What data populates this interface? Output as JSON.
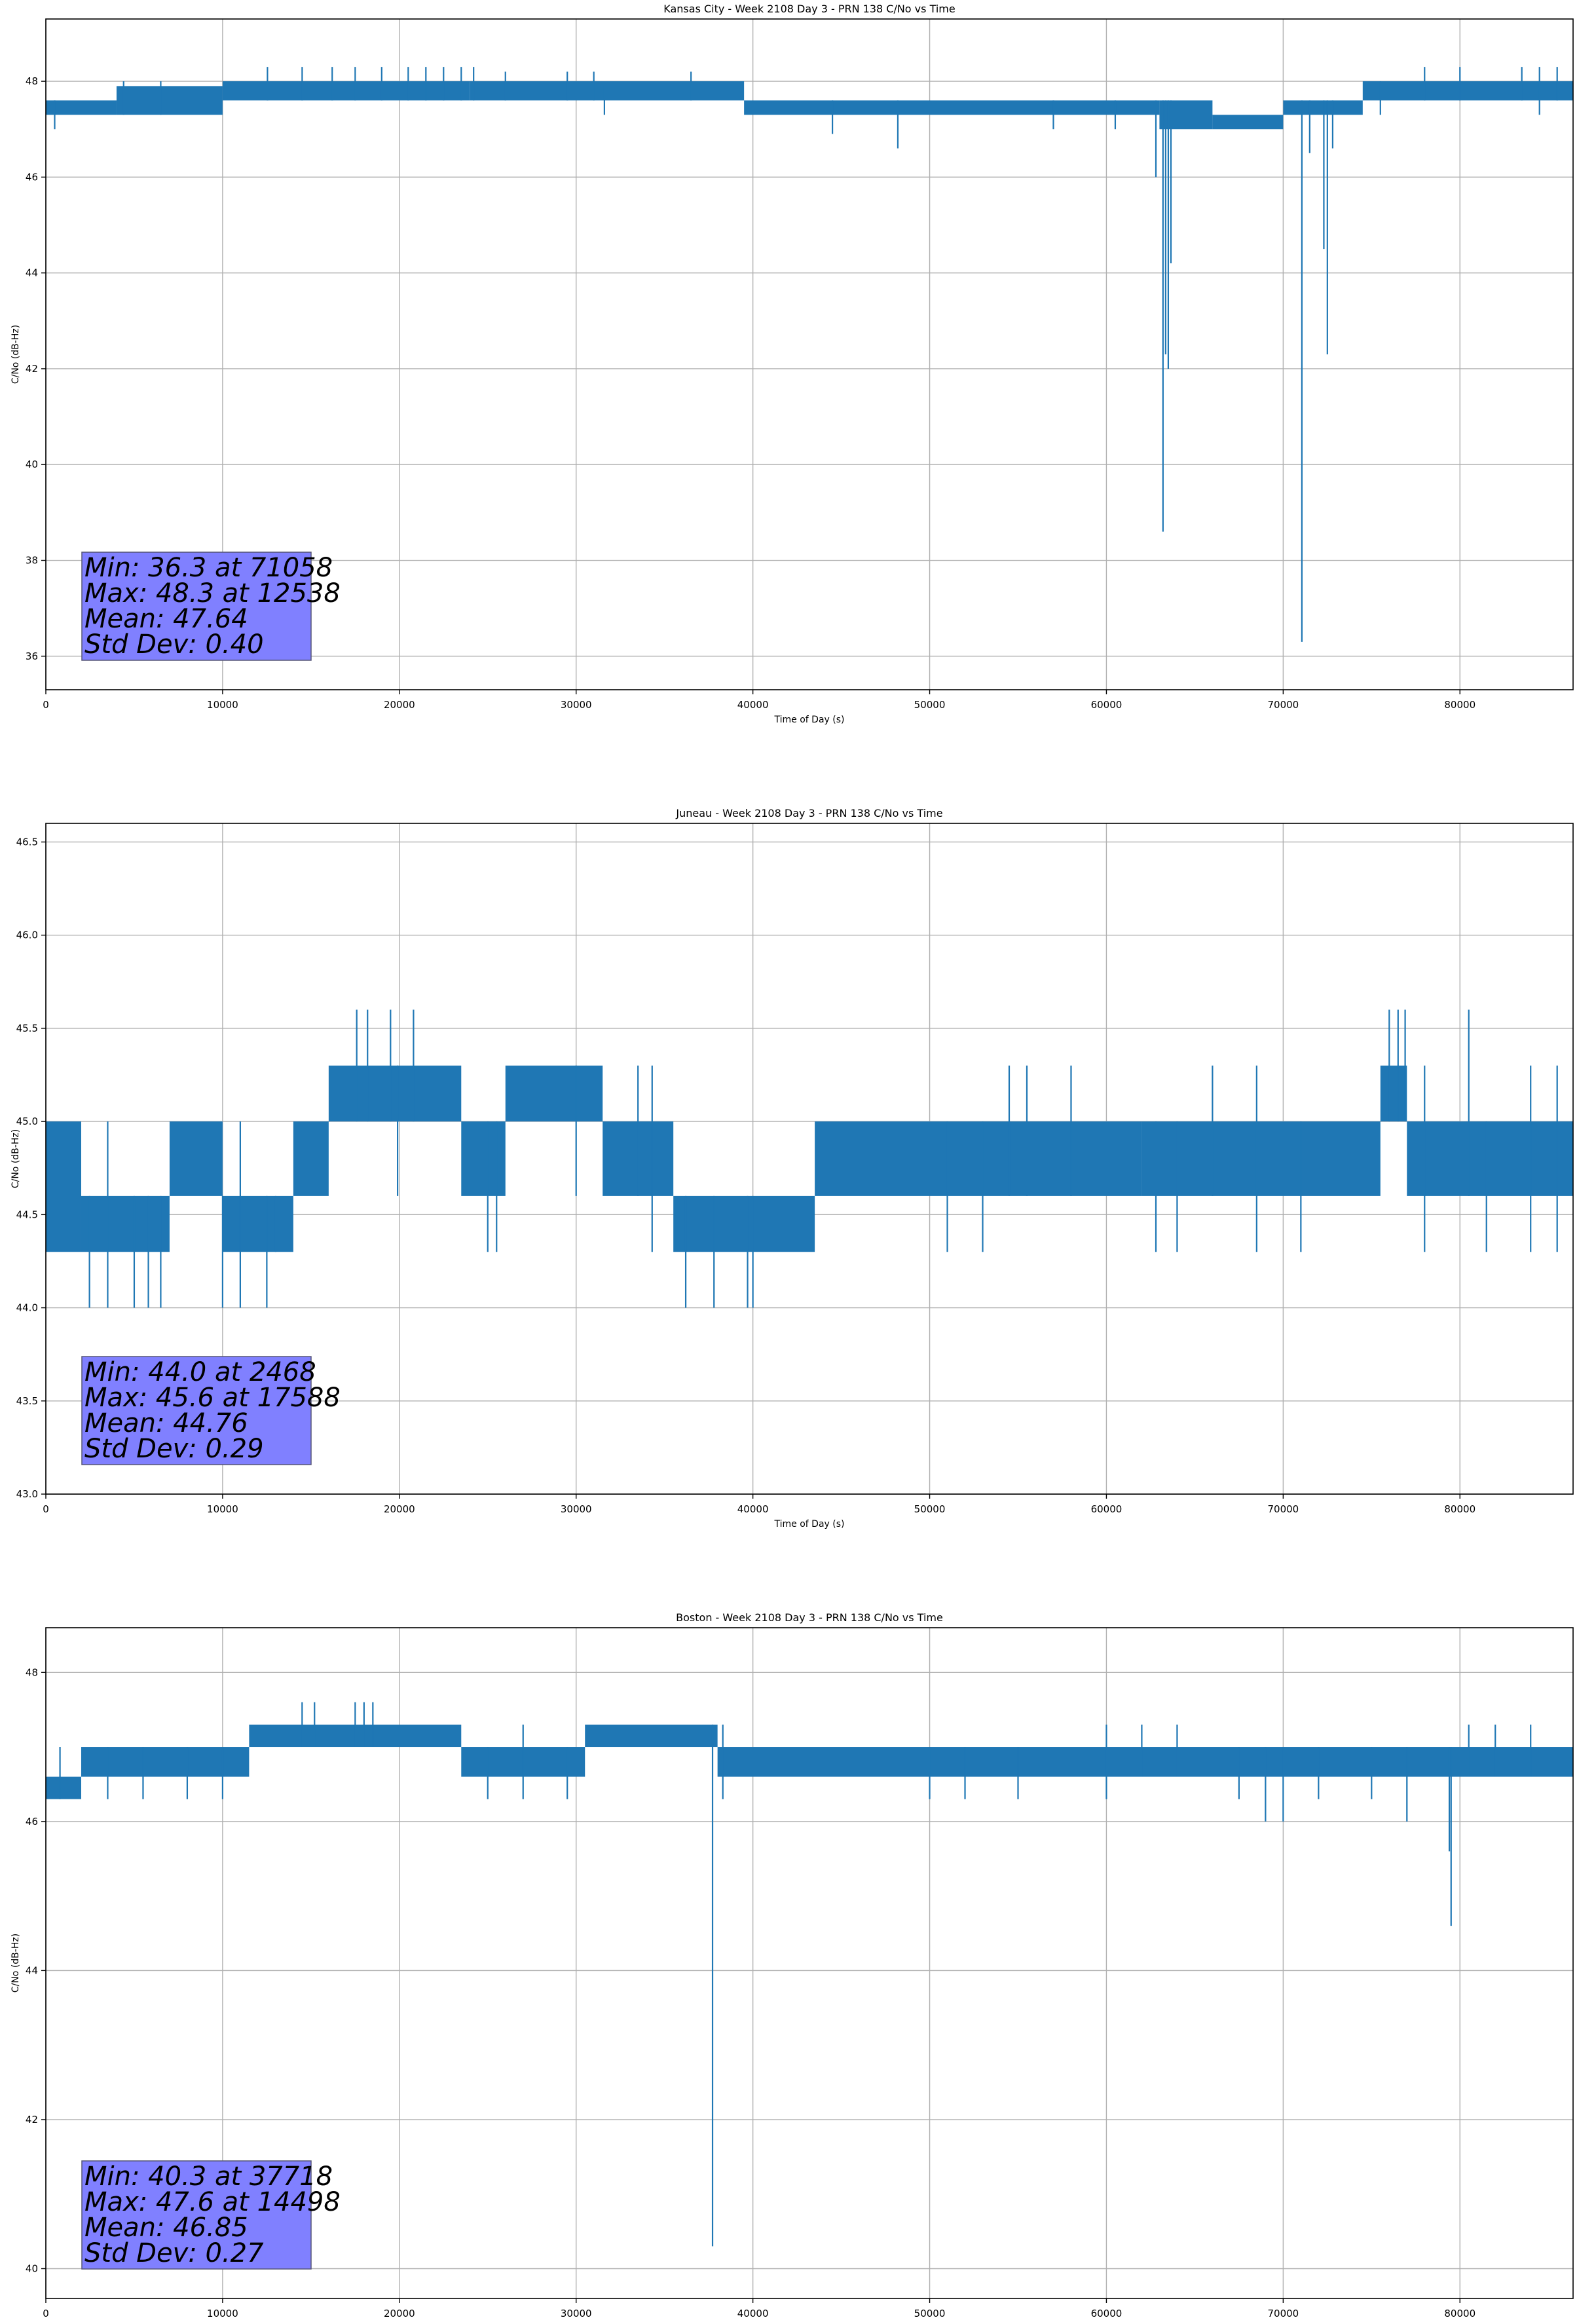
{
  "colors": {
    "series": "#1f77b4",
    "grid": "#b0b0b0",
    "stats_box_fill": "#8080ff",
    "stats_box_edge": "#555577"
  },
  "chart_data": [
    {
      "type": "line",
      "title": "Kansas City - Week 2108 Day 3 - PRN 138 C/No vs Time",
      "xlabel": "Time of Day (s)",
      "ylabel": "C/No (dB-Hz)",
      "xlim": [
        0,
        86400
      ],
      "ylim": [
        35.3,
        49.3
      ],
      "xticks": [
        0,
        10000,
        20000,
        30000,
        40000,
        50000,
        60000,
        70000,
        80000
      ],
      "xtick_labels": [
        "0",
        "10000",
        "20000",
        "30000",
        "40000",
        "50000",
        "60000",
        "70000",
        "80000"
      ],
      "yticks": [
        36,
        38,
        40,
        42,
        44,
        46,
        48
      ],
      "ytick_labels": [
        "36",
        "38",
        "40",
        "42",
        "44",
        "46",
        "48"
      ],
      "grid": true,
      "bands": [
        {
          "x0": 0,
          "x1": 4000,
          "lo": 47.3,
          "hi": 47.6
        },
        {
          "x0": 4000,
          "x1": 10000,
          "lo": 47.3,
          "hi": 47.9
        },
        {
          "x0": 10000,
          "x1": 24000,
          "lo": 47.6,
          "hi": 48.0
        },
        {
          "x0": 24000,
          "x1": 39500,
          "lo": 47.6,
          "hi": 48.0
        },
        {
          "x0": 39500,
          "x1": 63000,
          "lo": 47.3,
          "hi": 47.6
        },
        {
          "x0": 63000,
          "x1": 66000,
          "lo": 47.0,
          "hi": 47.6
        },
        {
          "x0": 66000,
          "x1": 70000,
          "lo": 47.0,
          "hi": 47.3
        },
        {
          "x0": 70000,
          "x1": 74500,
          "lo": 47.3,
          "hi": 47.6
        },
        {
          "x0": 74500,
          "x1": 86400,
          "lo": 47.6,
          "hi": 48.0
        }
      ],
      "spikes": [
        {
          "x": 500,
          "lo": 47.0,
          "hi": 47.6
        },
        {
          "x": 4400,
          "lo": 47.3,
          "hi": 48.0
        },
        {
          "x": 6500,
          "lo": 47.3,
          "hi": 48.0
        },
        {
          "x": 12538,
          "lo": 47.6,
          "hi": 48.3
        },
        {
          "x": 14500,
          "lo": 47.6,
          "hi": 48.3
        },
        {
          "x": 16200,
          "lo": 47.6,
          "hi": 48.3
        },
        {
          "x": 17500,
          "lo": 47.6,
          "hi": 48.3
        },
        {
          "x": 19000,
          "lo": 47.6,
          "hi": 48.3
        },
        {
          "x": 20500,
          "lo": 47.6,
          "hi": 48.3
        },
        {
          "x": 21500,
          "lo": 47.6,
          "hi": 48.3
        },
        {
          "x": 22500,
          "lo": 47.6,
          "hi": 48.3
        },
        {
          "x": 23500,
          "lo": 47.6,
          "hi": 48.3
        },
        {
          "x": 24200,
          "lo": 47.6,
          "hi": 48.3
        },
        {
          "x": 26000,
          "lo": 47.6,
          "hi": 48.2
        },
        {
          "x": 29500,
          "lo": 47.6,
          "hi": 48.2
        },
        {
          "x": 31000,
          "lo": 47.6,
          "hi": 48.2
        },
        {
          "x": 36500,
          "lo": 47.6,
          "hi": 48.2
        },
        {
          "x": 31600,
          "lo": 47.3,
          "hi": 47.9
        },
        {
          "x": 44500,
          "lo": 46.9,
          "hi": 47.6
        },
        {
          "x": 48200,
          "lo": 46.6,
          "hi": 47.6
        },
        {
          "x": 57000,
          "lo": 47.0,
          "hi": 47.6
        },
        {
          "x": 60500,
          "lo": 47.0,
          "hi": 47.6
        },
        {
          "x": 62800,
          "lo": 46.0,
          "hi": 47.6
        },
        {
          "x": 63200,
          "lo": 38.6,
          "hi": 47.6
        },
        {
          "x": 63350,
          "lo": 42.3,
          "hi": 47.6
        },
        {
          "x": 63500,
          "lo": 42.0,
          "hi": 47.6
        },
        {
          "x": 63650,
          "lo": 44.2,
          "hi": 47.6
        },
        {
          "x": 71058,
          "lo": 36.3,
          "hi": 47.6
        },
        {
          "x": 71500,
          "lo": 46.5,
          "hi": 47.6
        },
        {
          "x": 72300,
          "lo": 44.5,
          "hi": 47.6
        },
        {
          "x": 72500,
          "lo": 42.3,
          "hi": 47.6
        },
        {
          "x": 72800,
          "lo": 46.6,
          "hi": 47.6
        },
        {
          "x": 75500,
          "lo": 47.3,
          "hi": 48.0
        },
        {
          "x": 78000,
          "lo": 47.6,
          "hi": 48.3
        },
        {
          "x": 80000,
          "lo": 47.6,
          "hi": 48.3
        },
        {
          "x": 83500,
          "lo": 47.6,
          "hi": 48.3
        },
        {
          "x": 84500,
          "lo": 47.3,
          "hi": 48.3
        },
        {
          "x": 85500,
          "lo": 47.6,
          "hi": 48.3
        }
      ],
      "stats": [
        "Min: 36.3 at 71058",
        "Max: 48.3 at 12538",
        "Mean: 47.64",
        "Std Dev: 0.40"
      ],
      "stats_box_placement": "lower-left"
    },
    {
      "type": "line",
      "title": "Juneau - Week 2108 Day 3 - PRN 138 C/No vs Time",
      "xlabel": "Time of Day (s)",
      "ylabel": "C/No (dB-Hz)",
      "xlim": [
        0,
        86400
      ],
      "ylim": [
        43.0,
        46.6
      ],
      "xticks": [
        0,
        10000,
        20000,
        30000,
        40000,
        50000,
        60000,
        70000,
        80000
      ],
      "xtick_labels": [
        "0",
        "10000",
        "20000",
        "30000",
        "40000",
        "50000",
        "60000",
        "70000",
        "80000"
      ],
      "yticks": [
        43.0,
        43.5,
        44.0,
        44.5,
        45.0,
        45.5,
        46.0,
        46.5
      ],
      "ytick_labels": [
        "43.0",
        "43.5",
        "44.0",
        "44.5",
        "45.0",
        "45.5",
        "46.0",
        "46.5"
      ],
      "grid": true,
      "bands": [
        {
          "x0": 0,
          "x1": 2000,
          "lo": 44.3,
          "hi": 45.0
        },
        {
          "x0": 2000,
          "x1": 7000,
          "lo": 44.3,
          "hi": 44.6
        },
        {
          "x0": 7000,
          "x1": 10000,
          "lo": 44.6,
          "hi": 45.0
        },
        {
          "x0": 10000,
          "x1": 14000,
          "lo": 44.3,
          "hi": 44.6
        },
        {
          "x0": 14000,
          "x1": 16000,
          "lo": 44.6,
          "hi": 45.0
        },
        {
          "x0": 16000,
          "x1": 23500,
          "lo": 45.0,
          "hi": 45.3
        },
        {
          "x0": 23500,
          "x1": 26000,
          "lo": 44.6,
          "hi": 45.0
        },
        {
          "x0": 26000,
          "x1": 31500,
          "lo": 45.0,
          "hi": 45.3
        },
        {
          "x0": 31500,
          "x1": 35500,
          "lo": 44.6,
          "hi": 45.0
        },
        {
          "x0": 35500,
          "x1": 43500,
          "lo": 44.3,
          "hi": 44.6
        },
        {
          "x0": 43500,
          "x1": 62000,
          "lo": 44.6,
          "hi": 45.0
        },
        {
          "x0": 62000,
          "x1": 75500,
          "lo": 44.6,
          "hi": 45.0
        },
        {
          "x0": 75500,
          "x1": 77000,
          "lo": 45.0,
          "hi": 45.3
        },
        {
          "x0": 77000,
          "x1": 86400,
          "lo": 44.6,
          "hi": 45.0
        }
      ],
      "spikes": [
        {
          "x": 2468,
          "lo": 44.0,
          "hi": 44.6
        },
        {
          "x": 3500,
          "lo": 44.0,
          "hi": 45.0
        },
        {
          "x": 5000,
          "lo": 44.0,
          "hi": 44.6
        },
        {
          "x": 5800,
          "lo": 44.0,
          "hi": 44.6
        },
        {
          "x": 6500,
          "lo": 44.0,
          "hi": 44.6
        },
        {
          "x": 10000,
          "lo": 44.0,
          "hi": 44.6
        },
        {
          "x": 11000,
          "lo": 44.0,
          "hi": 45.0
        },
        {
          "x": 12500,
          "lo": 44.0,
          "hi": 44.6
        },
        {
          "x": 13000,
          "lo": 44.3,
          "hi": 44.6
        },
        {
          "x": 17588,
          "lo": 45.0,
          "hi": 45.6
        },
        {
          "x": 18200,
          "lo": 45.0,
          "hi": 45.6
        },
        {
          "x": 19500,
          "lo": 45.0,
          "hi": 45.6
        },
        {
          "x": 20800,
          "lo": 45.0,
          "hi": 45.6
        },
        {
          "x": 19900,
          "lo": 44.6,
          "hi": 45.3
        },
        {
          "x": 25000,
          "lo": 44.3,
          "hi": 45.0
        },
        {
          "x": 25500,
          "lo": 44.3,
          "hi": 45.0
        },
        {
          "x": 30000,
          "lo": 44.6,
          "hi": 45.3
        },
        {
          "x": 33500,
          "lo": 44.6,
          "hi": 45.3
        },
        {
          "x": 34300,
          "lo": 44.3,
          "hi": 45.3
        },
        {
          "x": 36200,
          "lo": 44.0,
          "hi": 44.6
        },
        {
          "x": 37800,
          "lo": 44.0,
          "hi": 44.6
        },
        {
          "x": 39700,
          "lo": 44.0,
          "hi": 44.6
        },
        {
          "x": 40000,
          "lo": 44.0,
          "hi": 44.6
        },
        {
          "x": 51000,
          "lo": 44.3,
          "hi": 45.0
        },
        {
          "x": 53000,
          "lo": 44.3,
          "hi": 45.0
        },
        {
          "x": 54500,
          "lo": 44.6,
          "hi": 45.3
        },
        {
          "x": 55500,
          "lo": 44.6,
          "hi": 45.3
        },
        {
          "x": 58000,
          "lo": 44.6,
          "hi": 45.3
        },
        {
          "x": 62800,
          "lo": 44.3,
          "hi": 45.0
        },
        {
          "x": 64000,
          "lo": 44.3,
          "hi": 45.0
        },
        {
          "x": 66000,
          "lo": 44.6,
          "hi": 45.3
        },
        {
          "x": 68500,
          "lo": 44.3,
          "hi": 45.3
        },
        {
          "x": 71000,
          "lo": 44.3,
          "hi": 45.0
        },
        {
          "x": 76000,
          "lo": 45.0,
          "hi": 45.6
        },
        {
          "x": 76500,
          "lo": 45.0,
          "hi": 45.6
        },
        {
          "x": 76900,
          "lo": 45.0,
          "hi": 45.6
        },
        {
          "x": 80500,
          "lo": 44.6,
          "hi": 45.6
        },
        {
          "x": 78000,
          "lo": 44.3,
          "hi": 45.3
        },
        {
          "x": 81500,
          "lo": 44.3,
          "hi": 45.0
        },
        {
          "x": 84000,
          "lo": 44.3,
          "hi": 45.3
        },
        {
          "x": 85500,
          "lo": 44.3,
          "hi": 45.3
        }
      ],
      "stats": [
        "Min: 44.0 at 2468",
        "Max: 45.6 at 17588",
        "Mean: 44.76",
        "Std Dev: 0.29"
      ],
      "stats_box_placement": "lower-left"
    },
    {
      "type": "line",
      "title": "Boston - Week 2108 Day 3 - PRN 138 C/No vs Time",
      "xlabel": "Time of Day (s)",
      "ylabel": "C/No (dB-Hz)",
      "xlim": [
        0,
        86400
      ],
      "ylim": [
        39.6,
        48.6
      ],
      "xticks": [
        0,
        10000,
        20000,
        30000,
        40000,
        50000,
        60000,
        70000,
        80000
      ],
      "xtick_labels": [
        "0",
        "10000",
        "20000",
        "30000",
        "40000",
        "50000",
        "60000",
        "70000",
        "80000"
      ],
      "yticks": [
        40,
        42,
        44,
        46,
        48
      ],
      "ytick_labels": [
        "40",
        "42",
        "44",
        "46",
        "48"
      ],
      "grid": true,
      "bands": [
        {
          "x0": 0,
          "x1": 2000,
          "lo": 46.3,
          "hi": 46.6
        },
        {
          "x0": 2000,
          "x1": 11500,
          "lo": 46.6,
          "hi": 47.0
        },
        {
          "x0": 11500,
          "x1": 23500,
          "lo": 47.0,
          "hi": 47.3
        },
        {
          "x0": 23500,
          "x1": 30500,
          "lo": 46.6,
          "hi": 47.0
        },
        {
          "x0": 30500,
          "x1": 38000,
          "lo": 47.0,
          "hi": 47.3
        },
        {
          "x0": 38000,
          "x1": 86400,
          "lo": 46.6,
          "hi": 47.0
        }
      ],
      "spikes": [
        {
          "x": 800,
          "lo": 46.3,
          "hi": 47.0
        },
        {
          "x": 3500,
          "lo": 46.3,
          "hi": 47.0
        },
        {
          "x": 5500,
          "lo": 46.3,
          "hi": 47.0
        },
        {
          "x": 8000,
          "lo": 46.3,
          "hi": 47.0
        },
        {
          "x": 10000,
          "lo": 46.3,
          "hi": 47.0
        },
        {
          "x": 14498,
          "lo": 47.0,
          "hi": 47.6
        },
        {
          "x": 15200,
          "lo": 47.0,
          "hi": 47.6
        },
        {
          "x": 17500,
          "lo": 47.0,
          "hi": 47.6
        },
        {
          "x": 18000,
          "lo": 47.0,
          "hi": 47.6
        },
        {
          "x": 18500,
          "lo": 47.0,
          "hi": 47.6
        },
        {
          "x": 25000,
          "lo": 46.3,
          "hi": 47.0
        },
        {
          "x": 27000,
          "lo": 46.3,
          "hi": 47.3
        },
        {
          "x": 29500,
          "lo": 46.3,
          "hi": 47.0
        },
        {
          "x": 37718,
          "lo": 40.3,
          "hi": 47.3
        },
        {
          "x": 38300,
          "lo": 46.3,
          "hi": 47.3
        },
        {
          "x": 50000,
          "lo": 46.3,
          "hi": 47.0
        },
        {
          "x": 52000,
          "lo": 46.3,
          "hi": 47.0
        },
        {
          "x": 55000,
          "lo": 46.3,
          "hi": 47.0
        },
        {
          "x": 60000,
          "lo": 46.3,
          "hi": 47.3
        },
        {
          "x": 62000,
          "lo": 46.6,
          "hi": 47.3
        },
        {
          "x": 64000,
          "lo": 46.6,
          "hi": 47.3
        },
        {
          "x": 67500,
          "lo": 46.3,
          "hi": 47.0
        },
        {
          "x": 69000,
          "lo": 46.0,
          "hi": 47.0
        },
        {
          "x": 70000,
          "lo": 46.0,
          "hi": 47.0
        },
        {
          "x": 72000,
          "lo": 46.3,
          "hi": 47.0
        },
        {
          "x": 75000,
          "lo": 46.3,
          "hi": 47.0
        },
        {
          "x": 77000,
          "lo": 46.0,
          "hi": 47.0
        },
        {
          "x": 79500,
          "lo": 44.6,
          "hi": 47.0
        },
        {
          "x": 79400,
          "lo": 45.6,
          "hi": 47.0
        },
        {
          "x": 80500,
          "lo": 46.6,
          "hi": 47.3
        },
        {
          "x": 82000,
          "lo": 46.6,
          "hi": 47.3
        },
        {
          "x": 84000,
          "lo": 46.6,
          "hi": 47.3
        }
      ],
      "stats": [
        "Min: 40.3 at 37718",
        "Max: 47.6 at 14498",
        "Mean: 46.85",
        "Std Dev: 0.27"
      ],
      "stats_box_placement": "lower-left"
    }
  ]
}
